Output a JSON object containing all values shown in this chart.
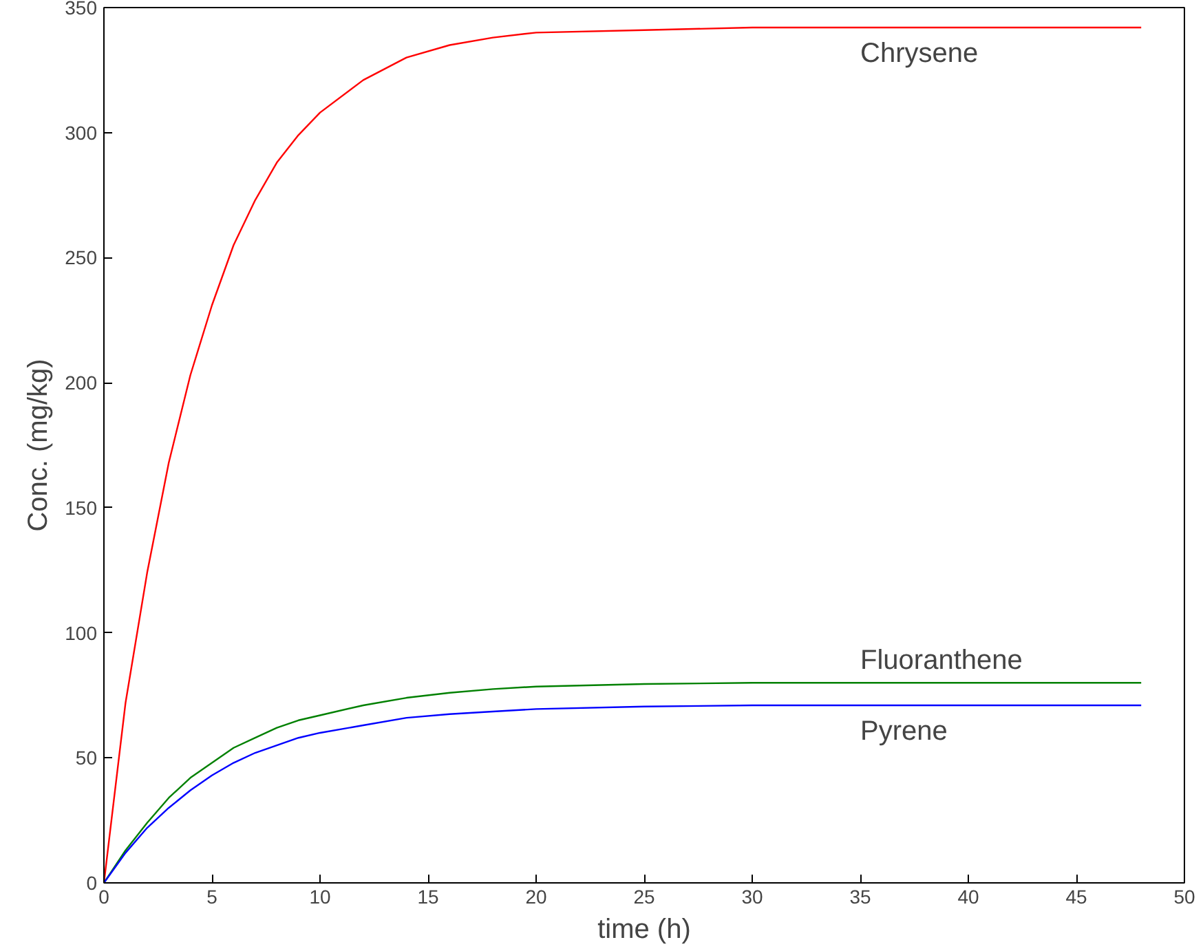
{
  "chart_data": {
    "type": "line",
    "xlabel": "time (h)",
    "ylabel": "Conc. (mg/kg)",
    "xlim": [
      0,
      50
    ],
    "ylim": [
      0,
      350
    ],
    "xticks": [
      0,
      5,
      10,
      15,
      20,
      25,
      30,
      35,
      40,
      45,
      50
    ],
    "yticks": [
      0,
      50,
      100,
      150,
      200,
      250,
      300,
      350
    ],
    "grid": false,
    "legend": false,
    "marker": "none",
    "line_style": "solid",
    "x": [
      0,
      1,
      2,
      3,
      4,
      5,
      6,
      7,
      8,
      9,
      10,
      12,
      14,
      16,
      18,
      20,
      25,
      30,
      35,
      40,
      48
    ],
    "series": [
      {
        "name": "Chrysene",
        "color": "#ff0000",
        "values": [
          0,
          72,
          124,
          168,
          203,
          231,
          255,
          273,
          288,
          299,
          308,
          321,
          330,
          335,
          338,
          340,
          341,
          342,
          342,
          342,
          342
        ]
      },
      {
        "name": "Fluoranthene",
        "color": "#008000",
        "values": [
          0,
          13,
          24,
          34,
          42,
          48,
          54,
          58,
          62,
          65,
          67,
          71,
          74,
          76,
          77.5,
          78.5,
          79.5,
          80,
          80,
          80,
          80
        ]
      },
      {
        "name": "Pyrene",
        "color": "#0000ff",
        "values": [
          0,
          12,
          22,
          30,
          37,
          43,
          48,
          52,
          55,
          58,
          60,
          63,
          66,
          67.5,
          68.5,
          69.5,
          70.5,
          71,
          71,
          71,
          71
        ]
      }
    ]
  }
}
